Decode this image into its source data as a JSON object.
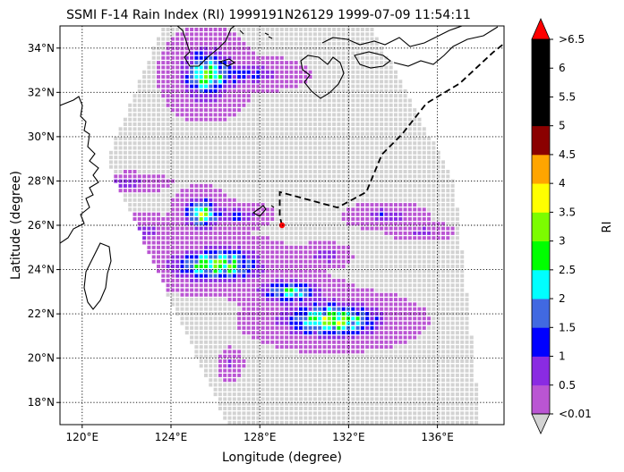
{
  "figure": {
    "title": "SSMI F-14 Rain Index (RI) 1999191N26129 1999-07-09 11:54:11",
    "xlabel": "Longitude (degree)",
    "ylabel": "Latitude (degree)"
  },
  "chart_data": {
    "type": "heatmap",
    "title": "SSMI F-14 Rain Index (RI) 1999191N26129 1999-07-09 11:54:11",
    "xlabel": "Longitude (degree)",
    "ylabel": "Latitude (degree)",
    "xlim": [
      119,
      139
    ],
    "ylim": [
      17,
      35
    ],
    "xticks": [
      120,
      124,
      128,
      132,
      136
    ],
    "yticks": [
      18,
      20,
      22,
      24,
      26,
      28,
      30,
      32,
      34
    ],
    "xtick_labels": [
      "120°E",
      "124°E",
      "128°E",
      "132°E",
      "136°E"
    ],
    "ytick_labels": [
      "18°N",
      "20°N",
      "22°N",
      "24°N",
      "26°N",
      "28°N",
      "30°N",
      "32°N",
      "34°N"
    ],
    "grid": true,
    "swath_corners": [
      [
        123.5,
        35
      ],
      [
        133,
        35
      ],
      [
        136.7,
        28
      ],
      [
        137.9,
        17
      ],
      [
        126.5,
        17
      ],
      [
        121,
        29
      ]
    ],
    "storm_center": [
      129,
      26
    ],
    "storm_track": [
      [
        129,
        26
      ],
      [
        128.9,
        26.4
      ],
      [
        128.9,
        27.5
      ],
      [
        131.5,
        26.8
      ],
      [
        132.8,
        27.5
      ],
      [
        133.5,
        29.2
      ],
      [
        134.4,
        30.1
      ],
      [
        135.5,
        31.5
      ],
      [
        137,
        32.4
      ],
      [
        138.5,
        33.8
      ],
      [
        139,
        34.2
      ]
    ],
    "rain_cells": [
      {
        "lon": 125.5,
        "lat": 32.9,
        "rx": 1.2,
        "ry": 1.2,
        "peak": 2.8
      },
      {
        "lon": 127.5,
        "lat": 32.9,
        "rx": 1.6,
        "ry": 0.5,
        "peak": 1.2
      },
      {
        "lon": 125.3,
        "lat": 26.6,
        "rx": 0.8,
        "ry": 0.7,
        "peak": 3.2
      },
      {
        "lon": 126.9,
        "lat": 26.5,
        "rx": 1.0,
        "ry": 0.4,
        "peak": 1.3
      },
      {
        "lon": 122.5,
        "lat": 25.8,
        "rx": 1.6,
        "ry": 0.5,
        "peak": 0.8
      },
      {
        "lon": 122.0,
        "lat": 28.0,
        "rx": 1.2,
        "ry": 0.3,
        "peak": 1.0
      },
      {
        "lon": 126.0,
        "lat": 24.3,
        "rx": 2.1,
        "ry": 0.8,
        "peak": 3.0
      },
      {
        "lon": 129.3,
        "lat": 23.1,
        "rx": 1.5,
        "ry": 0.5,
        "peak": 2.4
      },
      {
        "lon": 131.2,
        "lat": 21.8,
        "rx": 2.3,
        "ry": 0.8,
        "peak": 3.2
      },
      {
        "lon": 133.6,
        "lat": 26.5,
        "rx": 1.2,
        "ry": 0.4,
        "peak": 1.0
      },
      {
        "lon": 135.2,
        "lat": 25.8,
        "rx": 1.0,
        "ry": 0.3,
        "peak": 0.7
      },
      {
        "lon": 130.8,
        "lat": 24.7,
        "rx": 0.8,
        "ry": 0.4,
        "peak": 1.0
      },
      {
        "lon": 126.6,
        "lat": 19.8,
        "rx": 0.4,
        "ry": 0.5,
        "peak": 0.6
      }
    ]
  },
  "colorbar": {
    "label": "RI",
    "tick_labels": [
      ">6.5",
      "6",
      "5.5",
      "5",
      "4.5",
      "4",
      "3.5",
      "3",
      "2.5",
      "2",
      "1.5",
      "1",
      "0.5",
      "<0.01"
    ],
    "levels": [
      0.01,
      0.5,
      1,
      1.5,
      2,
      2.5,
      3,
      3.5,
      4,
      4.5,
      5,
      5.5,
      6,
      6.5
    ],
    "colors": [
      "#ba55d3",
      "#8a2be2",
      "#0000ff",
      "#4169e1",
      "#00ffff",
      "#00ff00",
      "#7cfc00",
      "#ffff00",
      "#ffa500",
      "#8b0000",
      "#000000",
      "#000000",
      "#000000"
    ],
    "under_color": "#d3d3d3",
    "over_color": "#ff0000"
  }
}
